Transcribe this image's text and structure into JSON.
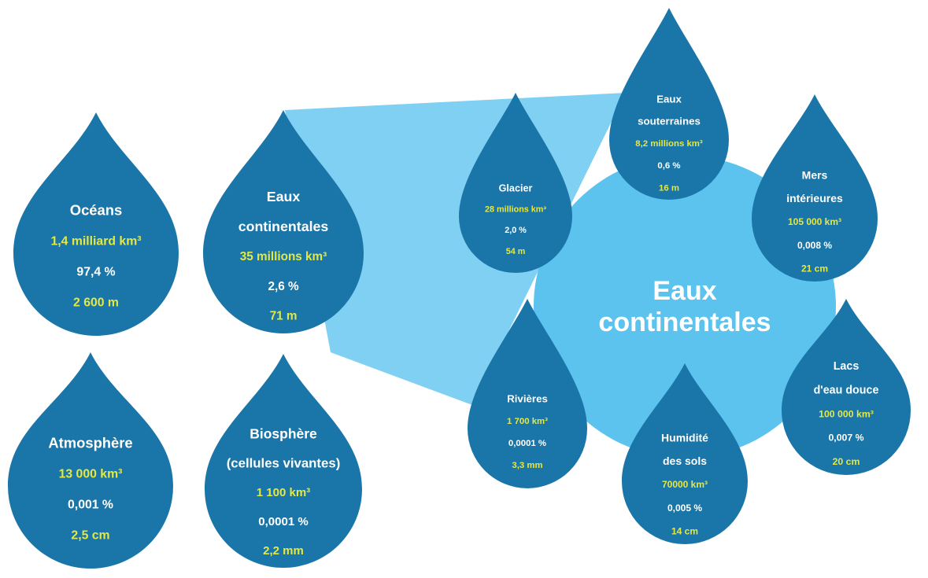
{
  "center_label": [
    "Eaux",
    "continentales"
  ],
  "drops": [
    {
      "title": [
        "Océans"
      ],
      "volume": "1,4 milliard km³",
      "percent": "97,4 %",
      "depth": "2 600 m"
    },
    {
      "title": [
        "Eaux",
        "continentales"
      ],
      "volume": "35 millions km³",
      "percent": "2,6 %",
      "depth": "71 m"
    },
    {
      "title": [
        "Atmosphère"
      ],
      "volume": "13 000 km³",
      "percent": "0,001 %",
      "depth": "2,5 cm"
    },
    {
      "title": [
        "Biosphère",
        "(cellules vivantes)"
      ],
      "volume": "1 100 km³",
      "percent": "0,0001 %",
      "depth": "2,2 mm"
    },
    {
      "title": [
        "Glacier"
      ],
      "volume": "28 millions km³",
      "percent": "2,0 %",
      "depth": "54 m"
    },
    {
      "title": [
        "Eaux",
        "souterraines"
      ],
      "volume": "8,2 millions km³",
      "percent": "0,6 %",
      "depth": "16 m"
    },
    {
      "title": [
        "Mers",
        "intérieures"
      ],
      "volume": "105 000 km³",
      "percent": "0,008 %",
      "depth": "21 cm"
    },
    {
      "title": [
        "Rivières"
      ],
      "volume": "1 700 km³",
      "percent": "0,0001 %",
      "depth": "3,3 mm"
    },
    {
      "title": [
        "Humidité",
        "des sols"
      ],
      "volume": "70000 km³",
      "percent": "0,005 %",
      "depth": "14 cm"
    },
    {
      "title": [
        "Lacs",
        "d'eau douce"
      ],
      "volume": "100 000 km³",
      "percent": "0,007 %",
      "depth": "20 cm"
    }
  ]
}
